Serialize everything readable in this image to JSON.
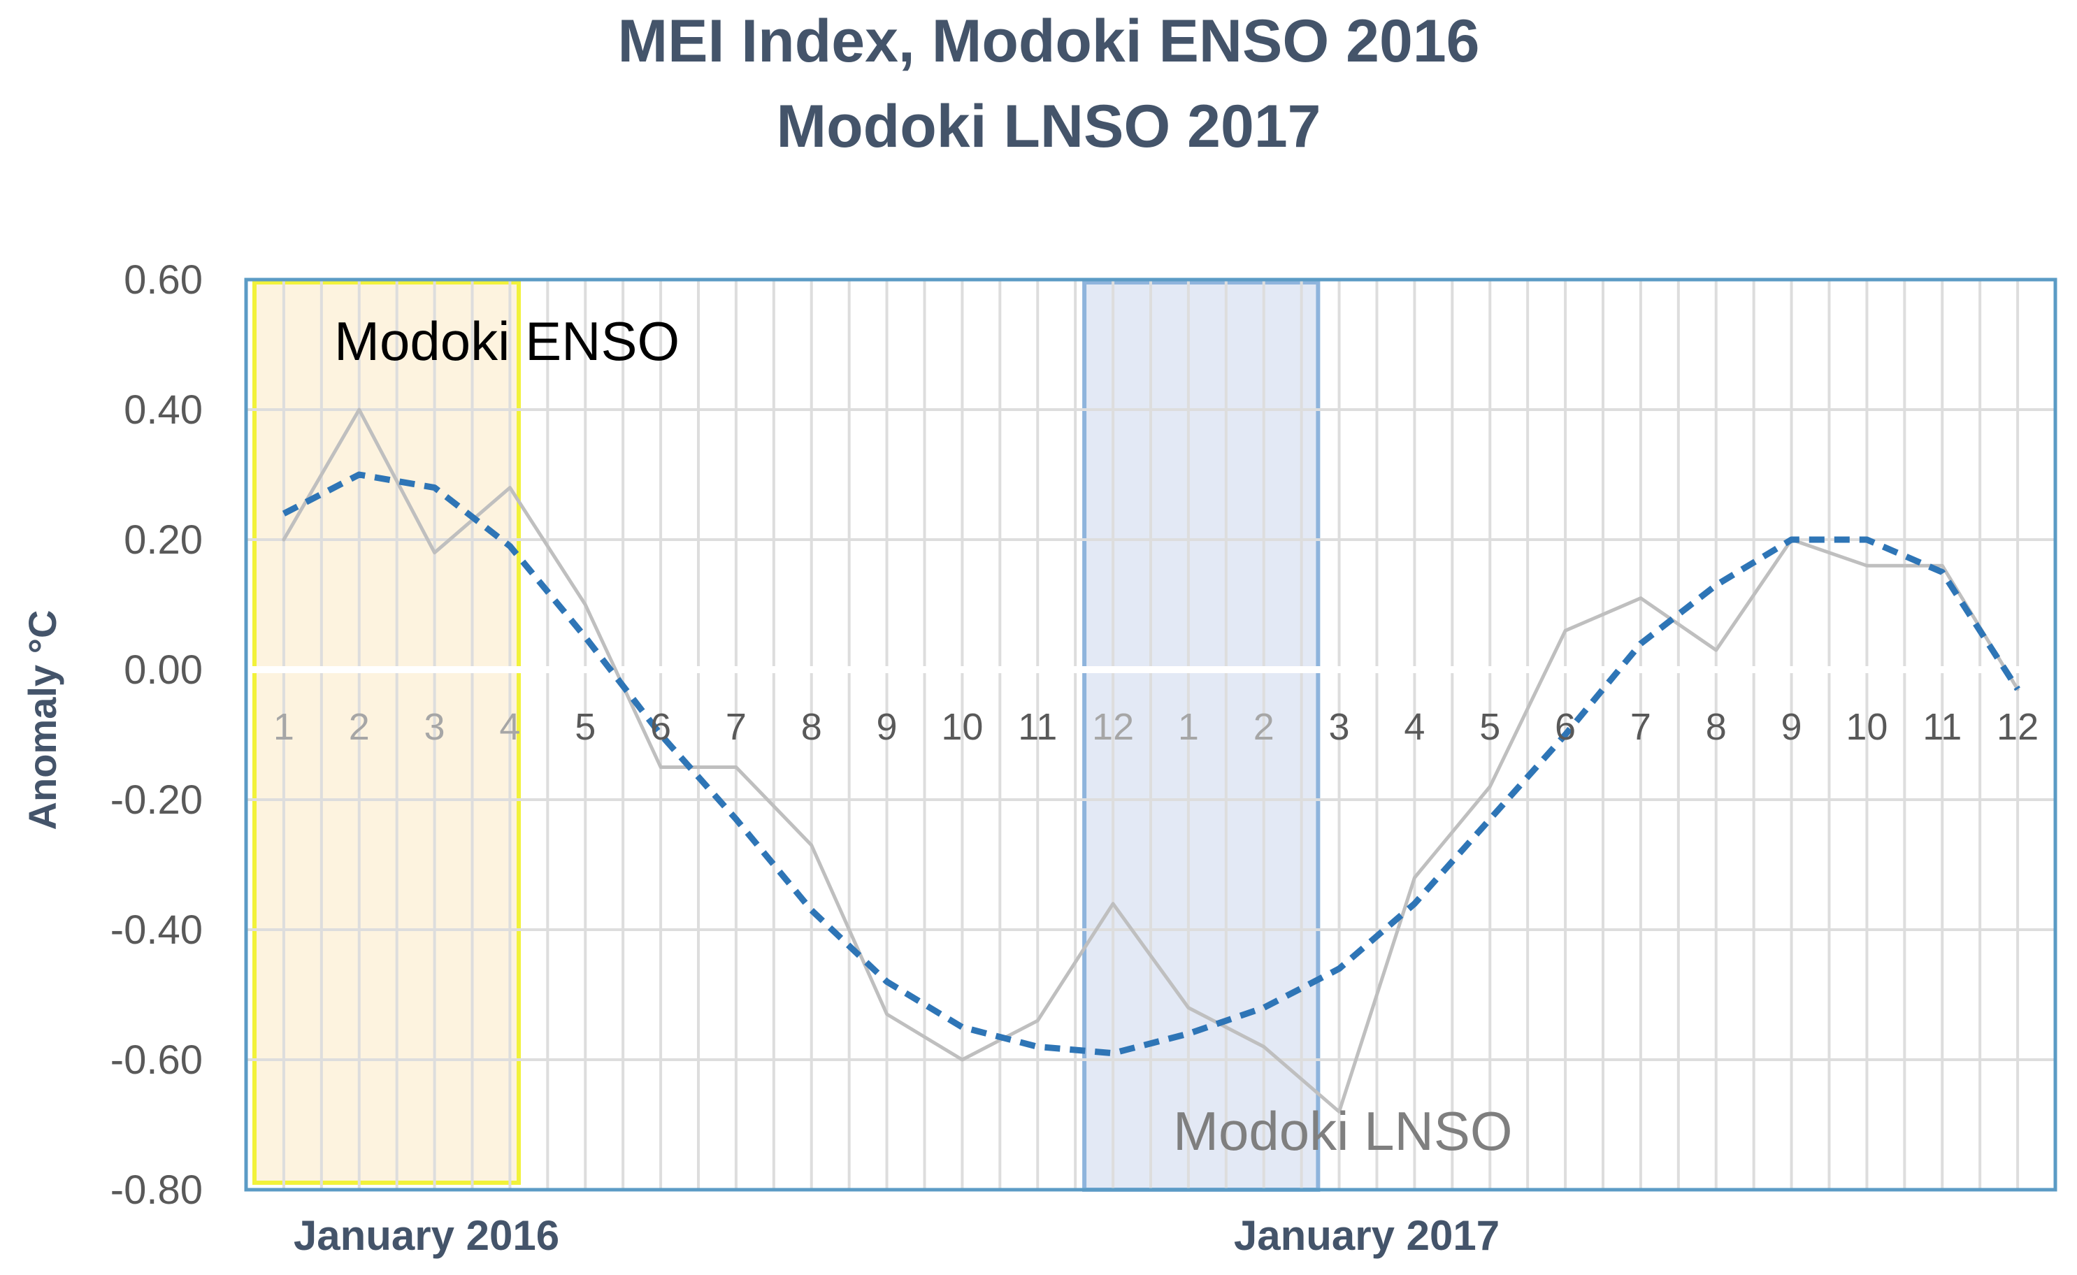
{
  "chart_data": {
    "type": "line",
    "title": [
      "MEI Index, Modoki ENSO 2016",
      "Modoki LNSO 2017"
    ],
    "ylabel": "Anomaly °C",
    "ylim": [
      -0.8,
      0.6
    ],
    "yticks": [
      "0.60",
      "0.40",
      "0.20",
      "0.00",
      "-0.20",
      "-0.40",
      "-0.60",
      "-0.80"
    ],
    "categories": [
      "1",
      "2",
      "3",
      "4",
      "5",
      "6",
      "7",
      "8",
      "9",
      "10",
      "11",
      "12",
      "1",
      "2",
      "3",
      "4",
      "5",
      "6",
      "7",
      "8",
      "9",
      "10",
      "11",
      "12"
    ],
    "year_labels": [
      "January 2016",
      "January 2017"
    ],
    "grid": true,
    "series": [
      {
        "style": "solid-gray",
        "color": "#BFBFBF",
        "values": [
          0.2,
          0.4,
          0.18,
          0.28,
          0.1,
          -0.15,
          -0.15,
          -0.27,
          -0.53,
          -0.6,
          -0.54,
          -0.36,
          -0.52,
          -0.58,
          -0.68,
          -0.32,
          -0.18,
          0.06,
          0.11,
          0.03,
          0.2,
          0.16,
          0.16,
          -0.03
        ]
      },
      {
        "style": "dashed-blue",
        "color": "#2E75B6",
        "values": [
          0.24,
          0.3,
          0.28,
          0.19,
          0.05,
          -0.1,
          -0.23,
          -0.37,
          -0.48,
          -0.55,
          -0.58,
          -0.59,
          -0.56,
          -0.52,
          -0.46,
          -0.36,
          -0.23,
          -0.1,
          0.04,
          0.13,
          0.2,
          0.2,
          0.15,
          -0.03
        ]
      }
    ],
    "annotations": [
      {
        "text": "Modoki ENSO",
        "color": "#000000"
      },
      {
        "text": "Modoki LNSO",
        "color": "#7F7F7F"
      }
    ],
    "highlight_regions": [
      {
        "name": "enso-window",
        "fill": "#FDF3DF",
        "border": "#F2F23A"
      },
      {
        "name": "lnso-window",
        "fill": "#E3E9F5",
        "border": "#8FB4DC"
      }
    ],
    "plot_border_color": "#5B9BC5",
    "grid_color": "#DDDDDD"
  }
}
